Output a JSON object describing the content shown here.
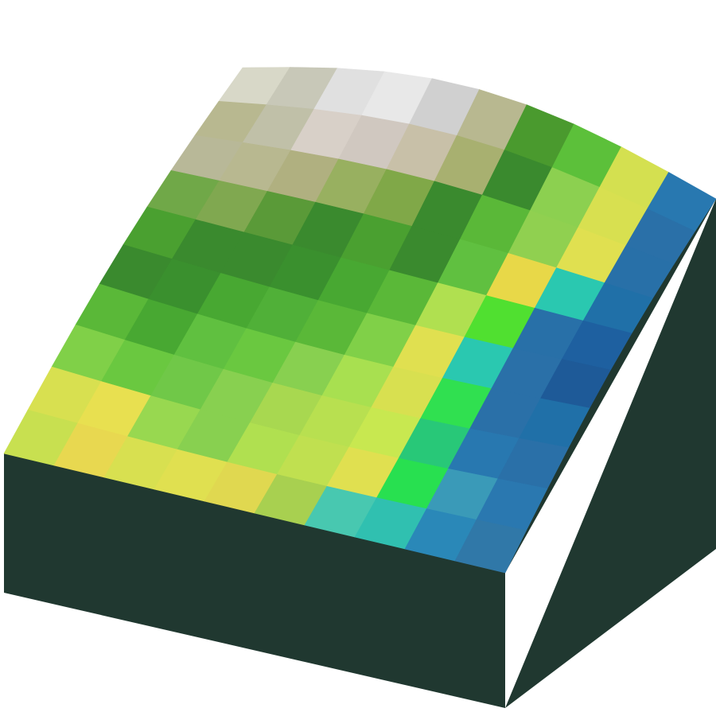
{
  "scene": {
    "description_free": true,
    "background_color": "#ffffff",
    "base_color": "#203830",
    "grid": {
      "rows": 10,
      "cols": 10,
      "colors": [
        [
          "#d8d8c8",
          "#c8c8b8",
          "#e0e0e0",
          "#e8e8e8",
          "#d0d0d0",
          "#b8b890",
          "#4a9a2e",
          "#5cc03a",
          "#d4e050",
          "#2878b0"
        ],
        [
          "#b8b890",
          "#c0c0a8",
          "#d8d0c8",
          "#d0c8c0",
          "#c8c0a8",
          "#a8b070",
          "#3a8a2e",
          "#8cd050",
          "#d8e050",
          "#2a70a8"
        ],
        [
          "#b8b898",
          "#b8b890",
          "#b0b080",
          "#98b060",
          "#80a848",
          "#3a8a2e",
          "#5ab838",
          "#90d050",
          "#e0e050",
          "#2870a8"
        ],
        [
          "#70a848",
          "#80a850",
          "#5a9a38",
          "#3a8a2e",
          "#4aa030",
          "#3a8a2e",
          "#60c040",
          "#e8d848",
          "#2ac8b0",
          "#2070a8"
        ],
        [
          "#4aa030",
          "#3a8a2e",
          "#3a8a2e",
          "#3a902e",
          "#48a832",
          "#5ab838",
          "#b0e050",
          "#50e030",
          "#2870a8",
          "#1e60a0"
        ],
        [
          "#3a8a2e",
          "#3a902e",
          "#48a832",
          "#50b038",
          "#5ab838",
          "#80d048",
          "#e0e050",
          "#2ac8b0",
          "#2a70a8",
          "#1e5a98"
        ],
        [
          "#5ab838",
          "#48a832",
          "#60c040",
          "#6ac840",
          "#88d050",
          "#a8e050",
          "#d8e050",
          "#30e050",
          "#2a70a8",
          "#2070a8"
        ],
        [
          "#80d048",
          "#6ac840",
          "#70c848",
          "#88d050",
          "#a8d850",
          "#b8e050",
          "#c8e850",
          "#28c878",
          "#2878b0",
          "#2a70a8"
        ],
        [
          "#d8e050",
          "#e8e050",
          "#98d850",
          "#88d050",
          "#b0e050",
          "#c0e050",
          "#e0e050",
          "#28e050",
          "#3a9ab8",
          "#2a78b0"
        ],
        [
          "#c8e050",
          "#e8d850",
          "#d8e050",
          "#e0e050",
          "#e0d850",
          "#a8d050",
          "#48c8b0",
          "#30c0b0",
          "#2a88b8",
          "#3078a8"
        ]
      ]
    }
  }
}
